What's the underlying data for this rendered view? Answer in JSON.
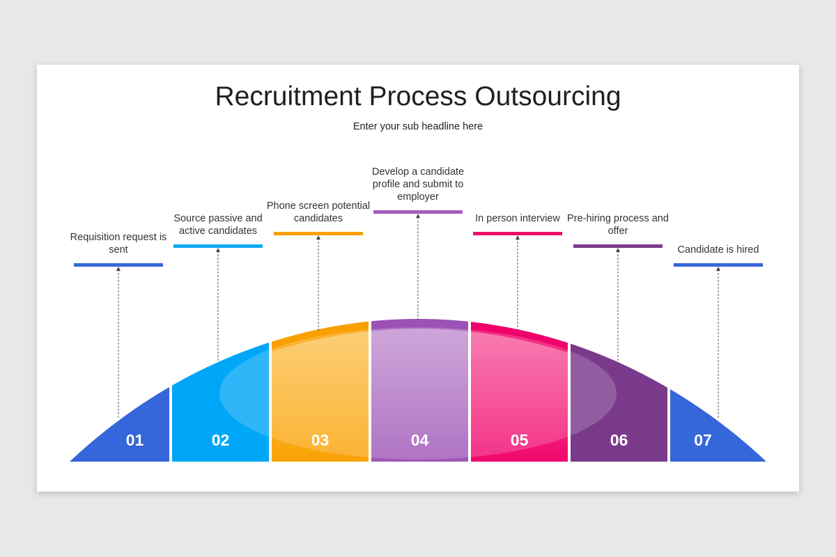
{
  "title": "Recruitment Process Outsourcing",
  "subtitle": "Enter your sub headline here",
  "steps": [
    {
      "number": "01",
      "label": "Requisition request is sent",
      "color": "#3567db",
      "band": "#3567db",
      "light": "#3567db"
    },
    {
      "number": "02",
      "label": "Source passive and active candidates",
      "color": "#10a8f2",
      "band": "#00a6f7",
      "light": "#00a6f7"
    },
    {
      "number": "03",
      "label": "Phone screen potential candidates",
      "color": "#f9a000",
      "band": "#f9a000",
      "light": "#fdc458"
    },
    {
      "number": "04",
      "label": "Develop a candidate profile and submit to employer",
      "color": "#a45cbd",
      "band": "#9b51b5",
      "light": "#c493d2"
    },
    {
      "number": "05",
      "label": "In person interview",
      "color": "#ef0f6b",
      "band": "#f0006a",
      "light": "#f760a0"
    },
    {
      "number": "06",
      "label": "Pre-hiring process and offer",
      "color": "#7b3b8b",
      "band": "#7a3a8c",
      "light": "#7a3a8c"
    },
    {
      "number": "07",
      "label": "Candidate is hired",
      "color": "#3567db",
      "band": "#3567db",
      "light": "#3567db"
    }
  ]
}
